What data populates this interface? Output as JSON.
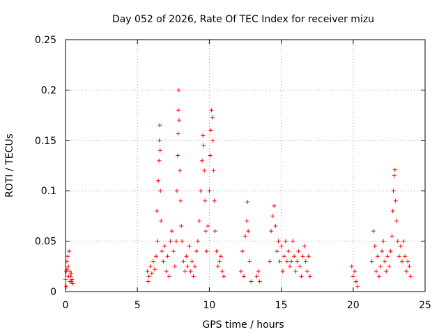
{
  "chart_data": {
    "type": "scatter",
    "title": "Day 052 of 2026, Rate Of TEC Index for receiver mizu",
    "xlabel": "GPS time / hours",
    "ylabel": "ROTI / TECUs",
    "xlim": [
      0,
      25
    ],
    "ylim": [
      0,
      0.25
    ],
    "x_ticks": [
      0,
      5,
      10,
      15,
      20,
      25
    ],
    "x_tick_labels": [
      "0",
      "5",
      "10",
      "15",
      "20",
      "25"
    ],
    "y_ticks": [
      0,
      0.05,
      0.1,
      0.15,
      0.2,
      0.25
    ],
    "y_tick_labels": [
      "0",
      "0.05",
      "0.1",
      "0.15",
      "0.2",
      "0.25"
    ],
    "grid": true,
    "marker": "+",
    "series": [
      {
        "name": "ROTI",
        "color": "#ff0000",
        "points": [
          [
            0.0,
            0.012
          ],
          [
            0.05,
            0.02
          ],
          [
            0.1,
            0.03
          ],
          [
            0.15,
            0.035
          ],
          [
            0.2,
            0.025
          ],
          [
            0.25,
            0.04
          ],
          [
            0.3,
            0.02
          ],
          [
            0.35,
            0.015
          ],
          [
            0.4,
            0.01
          ],
          [
            0.45,
            0.012
          ],
          [
            0.5,
            0.008
          ],
          [
            0.05,
            0.005
          ],
          [
            0.2,
            0.015
          ],
          [
            0.3,
            0.01
          ],
          [
            0.1,
            0.022
          ],
          [
            0.4,
            0.018
          ],
          [
            5.7,
            0.02
          ],
          [
            5.75,
            0.01
          ],
          [
            5.8,
            0.015
          ],
          [
            5.9,
            0.025
          ],
          [
            6.0,
            0.018
          ],
          [
            6.1,
            0.03
          ],
          [
            6.2,
            0.022
          ],
          [
            6.3,
            0.035
          ],
          [
            6.35,
            0.08
          ],
          [
            6.4,
            0.05
          ],
          [
            6.45,
            0.11
          ],
          [
            6.5,
            0.13
          ],
          [
            6.52,
            0.15
          ],
          [
            6.55,
            0.165
          ],
          [
            6.58,
            0.14
          ],
          [
            6.6,
            0.1
          ],
          [
            6.65,
            0.07
          ],
          [
            6.7,
            0.04
          ],
          [
            6.8,
            0.03
          ],
          [
            6.9,
            0.045
          ],
          [
            7.0,
            0.02
          ],
          [
            7.1,
            0.035
          ],
          [
            7.2,
            0.015
          ],
          [
            7.3,
            0.05
          ],
          [
            7.4,
            0.06
          ],
          [
            7.5,
            0.04
          ],
          [
            7.6,
            0.025
          ],
          [
            7.7,
            0.05
          ],
          [
            7.75,
            0.1
          ],
          [
            7.8,
            0.135
          ],
          [
            7.82,
            0.157
          ],
          [
            7.85,
            0.18
          ],
          [
            7.88,
            0.2
          ],
          [
            7.9,
            0.17
          ],
          [
            7.95,
            0.12
          ],
          [
            8.0,
            0.09
          ],
          [
            8.05,
            0.065
          ],
          [
            8.1,
            0.05
          ],
          [
            8.2,
            0.03
          ],
          [
            8.3,
            0.02
          ],
          [
            8.4,
            0.035
          ],
          [
            8.5,
            0.025
          ],
          [
            8.6,
            0.045
          ],
          [
            8.7,
            0.02
          ],
          [
            8.8,
            0.03
          ],
          [
            8.9,
            0.015
          ],
          [
            9.0,
            0.025
          ],
          [
            9.1,
            0.04
          ],
          [
            9.2,
            0.05
          ],
          [
            9.3,
            0.07
          ],
          [
            9.4,
            0.1
          ],
          [
            9.5,
            0.13
          ],
          [
            9.55,
            0.155
          ],
          [
            9.6,
            0.145
          ],
          [
            9.65,
            0.12
          ],
          [
            9.7,
            0.09
          ],
          [
            9.75,
            0.06
          ],
          [
            9.8,
            0.04
          ],
          [
            9.9,
            0.065
          ],
          [
            10.0,
            0.1
          ],
          [
            10.05,
            0.135
          ],
          [
            10.1,
            0.16
          ],
          [
            10.15,
            0.18
          ],
          [
            10.2,
            0.173
          ],
          [
            10.25,
            0.15
          ],
          [
            10.3,
            0.12
          ],
          [
            10.35,
            0.09
          ],
          [
            10.4,
            0.06
          ],
          [
            10.5,
            0.04
          ],
          [
            10.6,
            0.025
          ],
          [
            10.7,
            0.03
          ],
          [
            10.8,
            0.035
          ],
          [
            10.9,
            0.02
          ],
          [
            11.0,
            0.015
          ],
          [
            12.2,
            0.02
          ],
          [
            12.3,
            0.04
          ],
          [
            12.4,
            0.015
          ],
          [
            12.5,
            0.055
          ],
          [
            12.6,
            0.07
          ],
          [
            12.65,
            0.089
          ],
          [
            12.7,
            0.06
          ],
          [
            12.8,
            0.03
          ],
          [
            12.9,
            0.01
          ],
          [
            13.3,
            0.015
          ],
          [
            13.4,
            0.02
          ],
          [
            13.5,
            0.01
          ],
          [
            14.2,
            0.03
          ],
          [
            14.3,
            0.06
          ],
          [
            14.4,
            0.075
          ],
          [
            14.5,
            0.085
          ],
          [
            14.6,
            0.065
          ],
          [
            14.7,
            0.04
          ],
          [
            14.8,
            0.05
          ],
          [
            14.9,
            0.03
          ],
          [
            15.0,
            0.045
          ],
          [
            15.1,
            0.02
          ],
          [
            15.2,
            0.035
          ],
          [
            15.3,
            0.05
          ],
          [
            15.4,
            0.03
          ],
          [
            15.5,
            0.04
          ],
          [
            15.6,
            0.025
          ],
          [
            15.7,
            0.03
          ],
          [
            15.8,
            0.05
          ],
          [
            15.9,
            0.035
          ],
          [
            16.0,
            0.02
          ],
          [
            16.1,
            0.03
          ],
          [
            16.2,
            0.04
          ],
          [
            16.3,
            0.025
          ],
          [
            16.4,
            0.015
          ],
          [
            16.5,
            0.035
          ],
          [
            16.6,
            0.045
          ],
          [
            16.7,
            0.03
          ],
          [
            16.8,
            0.02
          ],
          [
            16.9,
            0.035
          ],
          [
            17.0,
            0.015
          ],
          [
            19.9,
            0.025
          ],
          [
            20.0,
            0.015
          ],
          [
            20.1,
            0.02
          ],
          [
            20.2,
            0.01
          ],
          [
            20.3,
            0.005
          ],
          [
            21.3,
            0.03
          ],
          [
            21.4,
            0.06
          ],
          [
            21.5,
            0.045
          ],
          [
            21.6,
            0.02
          ],
          [
            21.7,
            0.035
          ],
          [
            21.8,
            0.015
          ],
          [
            21.9,
            0.025
          ],
          [
            22.0,
            0.04
          ],
          [
            22.1,
            0.05
          ],
          [
            22.2,
            0.03
          ],
          [
            22.3,
            0.02
          ],
          [
            22.4,
            0.035
          ],
          [
            22.5,
            0.025
          ],
          [
            22.6,
            0.04
          ],
          [
            22.7,
            0.055
          ],
          [
            22.75,
            0.08
          ],
          [
            22.8,
            0.1
          ],
          [
            22.85,
            0.115
          ],
          [
            22.9,
            0.121
          ],
          [
            22.95,
            0.09
          ],
          [
            23.0,
            0.07
          ],
          [
            23.1,
            0.05
          ],
          [
            23.2,
            0.035
          ],
          [
            23.3,
            0.045
          ],
          [
            23.4,
            0.03
          ],
          [
            23.5,
            0.05
          ],
          [
            23.6,
            0.035
          ],
          [
            23.7,
            0.02
          ],
          [
            23.8,
            0.03
          ],
          [
            23.9,
            0.025
          ],
          [
            24.0,
            0.015
          ]
        ]
      }
    ]
  }
}
